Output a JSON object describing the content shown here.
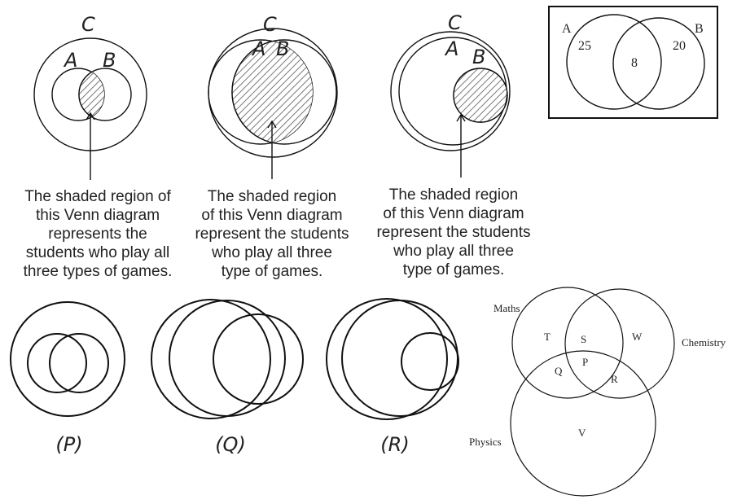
{
  "top_diagrams": [
    {
      "universal": "C",
      "set_a": "A",
      "set_b": "B",
      "caption": [
        "The shaded region of",
        "this Venn diagram",
        "represents the",
        "students who play all",
        "three types of games."
      ]
    },
    {
      "universal": "C",
      "set_a": "A",
      "set_b": "B",
      "caption": [
        "The shaded region",
        "of this Venn diagram",
        "represent the students",
        "who play all three",
        "type of games."
      ]
    },
    {
      "universal": "C",
      "set_a": "A",
      "set_b": "B",
      "caption": [
        "The shaded region",
        "of this Venn diagram",
        "represent the students",
        "who play all three",
        "type of games."
      ]
    }
  ],
  "boxed_venn": {
    "label_a": "A",
    "label_b": "B",
    "only_a": "25",
    "both": "8",
    "only_b": "20"
  },
  "bottom_labels": {
    "p": "(P)",
    "q": "(Q)",
    "r": "(R)"
  },
  "three_set": {
    "label_maths": "Maths",
    "label_chemistry": "Chemistry",
    "label_physics": "Physics",
    "region_t": "T",
    "region_s": "S",
    "region_w": "W",
    "region_p": "P",
    "region_q": "Q",
    "region_r": "R",
    "region_v": "V"
  },
  "colors": {
    "stroke": "#111111",
    "hatch": "#777777",
    "text": "#222222"
  }
}
